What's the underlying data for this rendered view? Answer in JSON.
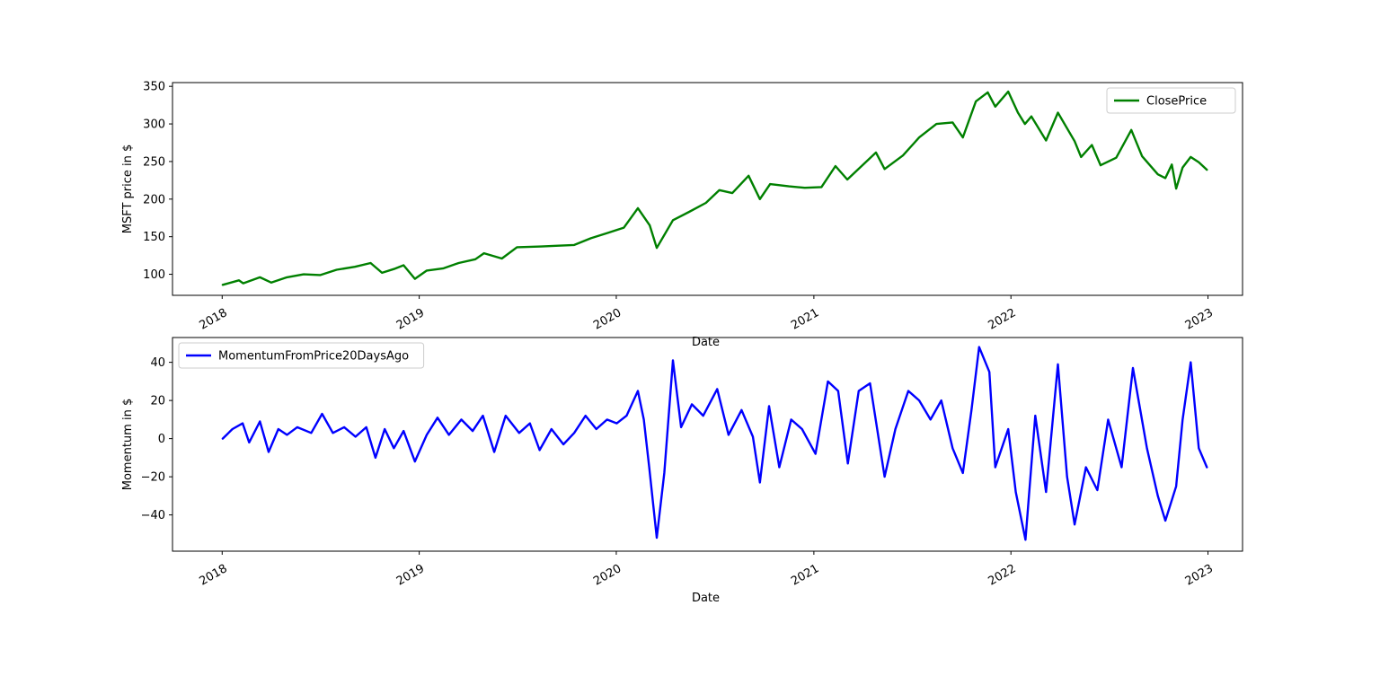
{
  "chart_data": [
    {
      "type": "line",
      "xlabel": "Date",
      "ylabel": "MSFT price in $",
      "x_range": [
        "2017-10-01",
        "2023-03-06"
      ],
      "ylim": [
        72,
        355
      ],
      "x_ticks": [
        {
          "date": "2018-01-01",
          "label": "2018"
        },
        {
          "date": "2019-01-01",
          "label": "2019"
        },
        {
          "date": "2020-01-01",
          "label": "2020"
        },
        {
          "date": "2021-01-01",
          "label": "2021"
        },
        {
          "date": "2022-01-01",
          "label": "2022"
        },
        {
          "date": "2023-01-01",
          "label": "2023"
        }
      ],
      "y_ticks": [
        100,
        150,
        200,
        250,
        300,
        350
      ],
      "grid": false,
      "legend_position": "top-right",
      "series": [
        {
          "name": "ClosePrice",
          "color": "#008000",
          "points": [
            [
              "2018-01-02",
              86
            ],
            [
              "2018-02-01",
              92
            ],
            [
              "2018-02-09",
              88
            ],
            [
              "2018-03-12",
              96
            ],
            [
              "2018-04-02",
              89
            ],
            [
              "2018-05-01",
              96
            ],
            [
              "2018-06-01",
              100
            ],
            [
              "2018-07-02",
              99
            ],
            [
              "2018-08-01",
              106
            ],
            [
              "2018-09-04",
              110
            ],
            [
              "2018-10-03",
              115
            ],
            [
              "2018-10-24",
              102
            ],
            [
              "2018-11-15",
              107
            ],
            [
              "2018-12-03",
              112
            ],
            [
              "2018-12-24",
              94
            ],
            [
              "2019-01-15",
              105
            ],
            [
              "2019-02-15",
              108
            ],
            [
              "2019-03-15",
              115
            ],
            [
              "2019-04-15",
              120
            ],
            [
              "2019-05-01",
              128
            ],
            [
              "2019-06-03",
              121
            ],
            [
              "2019-07-01",
              136
            ],
            [
              "2019-08-15",
              137
            ],
            [
              "2019-09-16",
              138
            ],
            [
              "2019-10-15",
              139
            ],
            [
              "2019-11-15",
              148
            ],
            [
              "2019-12-16",
              155
            ],
            [
              "2020-01-15",
              162
            ],
            [
              "2020-02-10",
              188
            ],
            [
              "2020-03-03",
              165
            ],
            [
              "2020-03-16",
              135
            ],
            [
              "2020-04-15",
              172
            ],
            [
              "2020-05-15",
              183
            ],
            [
              "2020-06-15",
              195
            ],
            [
              "2020-07-10",
              212
            ],
            [
              "2020-08-03",
              208
            ],
            [
              "2020-09-02",
              231
            ],
            [
              "2020-09-23",
              200
            ],
            [
              "2020-10-12",
              220
            ],
            [
              "2020-11-16",
              217
            ],
            [
              "2020-12-15",
              215
            ],
            [
              "2021-01-15",
              216
            ],
            [
              "2021-02-10",
              244
            ],
            [
              "2021-03-04",
              226
            ],
            [
              "2021-04-26",
              262
            ],
            [
              "2021-05-12",
              240
            ],
            [
              "2021-06-15",
              258
            ],
            [
              "2021-07-15",
              282
            ],
            [
              "2021-08-16",
              300
            ],
            [
              "2021-09-15",
              302
            ],
            [
              "2021-10-04",
              282
            ],
            [
              "2021-10-28",
              330
            ],
            [
              "2021-11-19",
              342
            ],
            [
              "2021-12-03",
              323
            ],
            [
              "2021-12-27",
              343
            ],
            [
              "2022-01-14",
              315
            ],
            [
              "2022-01-27",
              300
            ],
            [
              "2022-02-08",
              310
            ],
            [
              "2022-03-07",
              278
            ],
            [
              "2022-03-29",
              315
            ],
            [
              "2022-04-29",
              277
            ],
            [
              "2022-05-11",
              256
            ],
            [
              "2022-05-31",
              272
            ],
            [
              "2022-06-16",
              245
            ],
            [
              "2022-07-15",
              255
            ],
            [
              "2022-08-12",
              292
            ],
            [
              "2022-09-01",
              257
            ],
            [
              "2022-09-30",
              233
            ],
            [
              "2022-10-14",
              228
            ],
            [
              "2022-10-26",
              246
            ],
            [
              "2022-11-03",
              214
            ],
            [
              "2022-11-15",
              242
            ],
            [
              "2022-11-30",
              256
            ],
            [
              "2022-12-15",
              249
            ],
            [
              "2022-12-30",
              239
            ]
          ]
        }
      ]
    },
    {
      "type": "line",
      "xlabel": "Date",
      "ylabel": "Momentum in $",
      "x_range": [
        "2017-10-01",
        "2023-03-06"
      ],
      "ylim": [
        -59,
        53
      ],
      "x_ticks": [
        {
          "date": "2018-01-01",
          "label": "2018"
        },
        {
          "date": "2019-01-01",
          "label": "2019"
        },
        {
          "date": "2020-01-01",
          "label": "2020"
        },
        {
          "date": "2021-01-01",
          "label": "2021"
        },
        {
          "date": "2022-01-01",
          "label": "2022"
        },
        {
          "date": "2023-01-01",
          "label": "2023"
        }
      ],
      "y_ticks": [
        -40,
        -20,
        0,
        20,
        40
      ],
      "grid": false,
      "legend_position": "top-left",
      "series": [
        {
          "name": "MomentumFromPrice20DaysAgo",
          "color": "#0000ff",
          "points": [
            [
              "2018-01-02",
              0
            ],
            [
              "2018-01-20",
              5
            ],
            [
              "2018-02-08",
              8
            ],
            [
              "2018-02-20",
              -2
            ],
            [
              "2018-03-12",
              9
            ],
            [
              "2018-03-28",
              -7
            ],
            [
              "2018-04-15",
              5
            ],
            [
              "2018-05-01",
              2
            ],
            [
              "2018-05-20",
              6
            ],
            [
              "2018-06-15",
              3
            ],
            [
              "2018-07-05",
              13
            ],
            [
              "2018-07-25",
              3
            ],
            [
              "2018-08-15",
              6
            ],
            [
              "2018-09-05",
              1
            ],
            [
              "2018-09-25",
              6
            ],
            [
              "2018-10-12",
              -10
            ],
            [
              "2018-10-29",
              5
            ],
            [
              "2018-11-15",
              -5
            ],
            [
              "2018-12-03",
              4
            ],
            [
              "2018-12-24",
              -12
            ],
            [
              "2019-01-15",
              2
            ],
            [
              "2019-02-04",
              11
            ],
            [
              "2019-02-25",
              2
            ],
            [
              "2019-03-20",
              10
            ],
            [
              "2019-04-10",
              4
            ],
            [
              "2019-04-29",
              12
            ],
            [
              "2019-05-20",
              -7
            ],
            [
              "2019-06-10",
              12
            ],
            [
              "2019-07-05",
              3
            ],
            [
              "2019-07-25",
              8
            ],
            [
              "2019-08-12",
              -6
            ],
            [
              "2019-09-03",
              5
            ],
            [
              "2019-09-25",
              -3
            ],
            [
              "2019-10-15",
              3
            ],
            [
              "2019-11-05",
              12
            ],
            [
              "2019-11-25",
              5
            ],
            [
              "2019-12-15",
              10
            ],
            [
              "2020-01-02",
              8
            ],
            [
              "2020-01-20",
              12
            ],
            [
              "2020-02-10",
              25
            ],
            [
              "2020-02-21",
              10
            ],
            [
              "2020-03-02",
              -15
            ],
            [
              "2020-03-16",
              -52
            ],
            [
              "2020-03-30",
              -18
            ],
            [
              "2020-04-15",
              41
            ],
            [
              "2020-04-30",
              6
            ],
            [
              "2020-05-20",
              18
            ],
            [
              "2020-06-10",
              12
            ],
            [
              "2020-07-06",
              26
            ],
            [
              "2020-07-27",
              2
            ],
            [
              "2020-08-20",
              15
            ],
            [
              "2020-09-10",
              1
            ],
            [
              "2020-09-23",
              -23
            ],
            [
              "2020-10-10",
              17
            ],
            [
              "2020-10-29",
              -15
            ],
            [
              "2020-11-20",
              10
            ],
            [
              "2020-12-10",
              5
            ],
            [
              "2021-01-04",
              -8
            ],
            [
              "2021-01-27",
              30
            ],
            [
              "2021-02-15",
              25
            ],
            [
              "2021-03-05",
              -13
            ],
            [
              "2021-03-25",
              25
            ],
            [
              "2021-04-15",
              29
            ],
            [
              "2021-05-12",
              -20
            ],
            [
              "2021-06-01",
              5
            ],
            [
              "2021-06-25",
              25
            ],
            [
              "2021-07-15",
              20
            ],
            [
              "2021-08-05",
              10
            ],
            [
              "2021-08-25",
              20
            ],
            [
              "2021-09-15",
              -5
            ],
            [
              "2021-10-04",
              -18
            ],
            [
              "2021-10-20",
              15
            ],
            [
              "2021-11-03",
              48
            ],
            [
              "2021-11-22",
              35
            ],
            [
              "2021-12-03",
              -15
            ],
            [
              "2021-12-27",
              5
            ],
            [
              "2022-01-10",
              -28
            ],
            [
              "2022-01-28",
              -53
            ],
            [
              "2022-02-15",
              12
            ],
            [
              "2022-03-07",
              -28
            ],
            [
              "2022-03-29",
              39
            ],
            [
              "2022-04-15",
              -20
            ],
            [
              "2022-04-29",
              -45
            ],
            [
              "2022-05-20",
              -15
            ],
            [
              "2022-06-10",
              -27
            ],
            [
              "2022-06-30",
              10
            ],
            [
              "2022-07-25",
              -15
            ],
            [
              "2022-08-15",
              37
            ],
            [
              "2022-09-10",
              -5
            ],
            [
              "2022-09-30",
              -30
            ],
            [
              "2022-10-14",
              -43
            ],
            [
              "2022-11-03",
              -25
            ],
            [
              "2022-11-15",
              10
            ],
            [
              "2022-11-30",
              40
            ],
            [
              "2022-12-15",
              -5
            ],
            [
              "2022-12-30",
              -15
            ]
          ]
        }
      ]
    }
  ]
}
